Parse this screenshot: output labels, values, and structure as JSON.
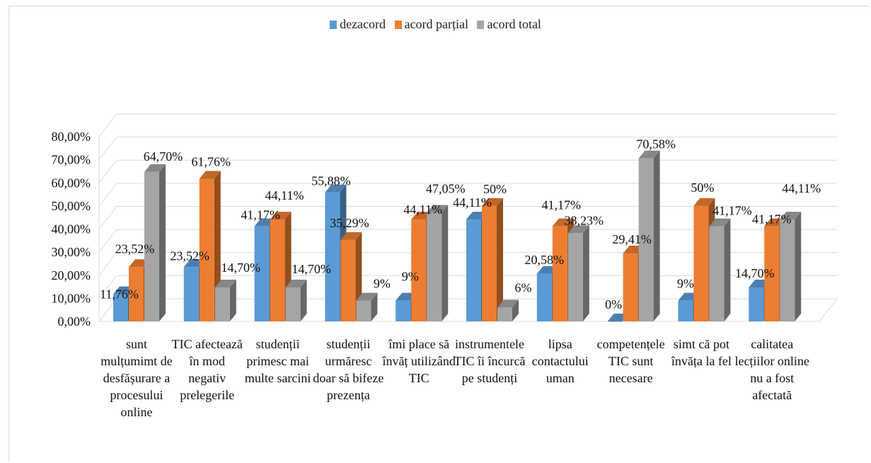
{
  "chart_data": {
    "type": "bar",
    "categories": [
      "sunt mulțumimt de desfășurare a procesului online",
      "TIC afectează în mod negativ prelegerile",
      "studenții primesc mai multe sarcini",
      "studenții urmăresc doar să bifeze prezența",
      "îmi place să învăț utilizând TIC",
      "instrumentele TIC îi încurcă pe studenți",
      "lipsa contactului uman",
      "competențele TIC sunt necesare",
      "simt că pot învăța la fel",
      "calitatea lecțiilor online nu a fost afectată"
    ],
    "category_lines": [
      [
        "sunt",
        "mulțumimt  de",
        "desfășurare a",
        "procesului",
        "online"
      ],
      [
        "TIC afectează",
        "în mod",
        "negativ",
        "prelegerile"
      ],
      [
        "studenții",
        "primesc mai",
        "multe sarcini"
      ],
      [
        "studenții",
        "urmăresc",
        "doar să bifeze",
        "prezența"
      ],
      [
        "îmi place să",
        "învăț utilizând",
        "TIC"
      ],
      [
        "instrumentele",
        "TIC îi încurcă",
        "pe studenți"
      ],
      [
        "lipsa",
        "contactului",
        "uman"
      ],
      [
        "competențele",
        "TIC sunt",
        "necesare"
      ],
      [
        "simt că pot",
        "învăța la fel"
      ],
      [
        "calitatea",
        "lecțiilor  online",
        "nu a fost",
        "afectată"
      ]
    ],
    "series": [
      {
        "name": "dezacord",
        "color": "#5b9bd5",
        "values": [
          11.76,
          23.52,
          41.17,
          55.88,
          9,
          44.11,
          20.58,
          0,
          9,
          14.7
        ],
        "labels": [
          "11,76%",
          "23,52%",
          "41,17%",
          "55,88%",
          "9%",
          "44,11%",
          "20,58%",
          "0%",
          "9%",
          "14,70%"
        ]
      },
      {
        "name": "acord parțial",
        "color": "#ed7d31",
        "values": [
          23.52,
          61.76,
          44.11,
          35.29,
          44.11,
          50,
          41.17,
          29.41,
          50,
          41.17
        ],
        "labels": [
          "23,52%",
          "61,76%",
          "44,11%",
          "35,29%",
          "44,11%",
          "50%",
          "41,17%",
          "29,41%",
          "50%",
          "41,17%"
        ]
      },
      {
        "name": "acord total",
        "color": "#a5a5a5",
        "values": [
          64.7,
          14.7,
          14.7,
          9,
          47.05,
          6,
          38.23,
          70.58,
          41.17,
          44.11
        ],
        "labels": [
          "64,70%",
          "14,70%",
          "14,70%",
          "9%",
          "47,05%",
          "6%",
          "38,23%",
          "70,58%",
          "41,17%",
          "44,11%"
        ]
      }
    ],
    "y_ticks": [
      "0,00%",
      "10,00%",
      "20,00%",
      "30,00%",
      "40,00%",
      "50,00%",
      "60,00%",
      "70,00%",
      "80,00%"
    ],
    "ylim": [
      0,
      80
    ],
    "grid": true,
    "legend_position": "top-center",
    "style": "3d-clustered-column"
  }
}
